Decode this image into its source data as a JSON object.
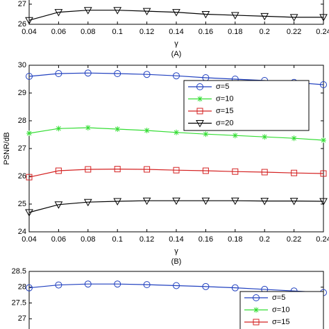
{
  "chart_data": [
    {
      "type": "line",
      "caption": "(A)",
      "xlabel": "γ",
      "x": [
        0.04,
        0.06,
        0.08,
        0.1,
        0.12,
        0.14,
        0.16,
        0.18,
        0.2,
        0.22,
        0.24
      ],
      "xlim": [
        0.04,
        0.24
      ],
      "xticks": [
        0.04,
        0.06,
        0.08,
        0.1,
        0.12,
        0.14,
        0.16,
        0.18,
        0.2,
        0.22,
        0.24
      ],
      "ylim": [
        26,
        28
      ],
      "yticks": [
        26,
        27
      ],
      "series": [
        {
          "color": "#000000",
          "marker": "triangle",
          "values": [
            26.2,
            26.6,
            26.7,
            26.7,
            26.65,
            26.6,
            26.5,
            26.45,
            26.4,
            26.35,
            26.35
          ]
        }
      ]
    },
    {
      "type": "line",
      "caption": "(B)",
      "xlabel": "γ",
      "ylabel": "PSNR/dB",
      "x": [
        0.04,
        0.06,
        0.08,
        0.1,
        0.12,
        0.14,
        0.16,
        0.18,
        0.2,
        0.22,
        0.24
      ],
      "xlim": [
        0.04,
        0.24
      ],
      "xticks": [
        0.04,
        0.06,
        0.08,
        0.1,
        0.12,
        0.14,
        0.16,
        0.18,
        0.2,
        0.22,
        0.24
      ],
      "ylim": [
        24,
        30
      ],
      "yticks": [
        24,
        25,
        26,
        27,
        28,
        29,
        30
      ],
      "legend": "upper right",
      "series": [
        {
          "name": "σ=5",
          "color": "#1f3fbf",
          "marker": "circle",
          "values": [
            29.6,
            29.7,
            29.72,
            29.7,
            29.67,
            29.62,
            29.55,
            29.5,
            29.45,
            29.38,
            29.3
          ]
        },
        {
          "name": "σ=10",
          "color": "#33dd33",
          "marker": "star",
          "values": [
            27.55,
            27.72,
            27.75,
            27.7,
            27.65,
            27.58,
            27.52,
            27.47,
            27.42,
            27.37,
            27.3
          ]
        },
        {
          "name": "σ=15",
          "color": "#d42020",
          "marker": "square",
          "values": [
            25.97,
            26.2,
            26.25,
            26.26,
            26.25,
            26.22,
            26.2,
            26.17,
            26.15,
            26.12,
            26.1
          ]
        },
        {
          "name": "σ=20",
          "color": "#000000",
          "marker": "triangle",
          "values": [
            24.7,
            24.98,
            25.07,
            25.1,
            25.12,
            25.12,
            25.12,
            25.12,
            25.11,
            25.11,
            25.1
          ]
        }
      ]
    },
    {
      "type": "line",
      "x": [
        0.04,
        0.06,
        0.08,
        0.1,
        0.12,
        0.14,
        0.16,
        0.18,
        0.2,
        0.22,
        0.24
      ],
      "xlim": [
        0.04,
        0.24
      ],
      "ylim": [
        26.5,
        28.5
      ],
      "yticks": [
        27,
        27.5,
        28,
        28.5
      ],
      "legend": "upper right",
      "series": [
        {
          "name": "σ=5",
          "color": "#1f3fbf",
          "marker": "circle",
          "values": [
            27.98,
            28.07,
            28.1,
            28.1,
            28.08,
            28.05,
            28.02,
            27.98,
            27.93,
            27.88,
            27.83
          ]
        },
        {
          "name": "σ=10",
          "color": "#33dd33",
          "marker": "star",
          "values": [
            null,
            null,
            null,
            null,
            null,
            null,
            null,
            null,
            null,
            null,
            null
          ]
        },
        {
          "name": "σ=15",
          "color": "#d42020",
          "marker": "square",
          "values": [
            null,
            null,
            null,
            null,
            null,
            null,
            null,
            null,
            null,
            null,
            null
          ]
        }
      ]
    }
  ]
}
